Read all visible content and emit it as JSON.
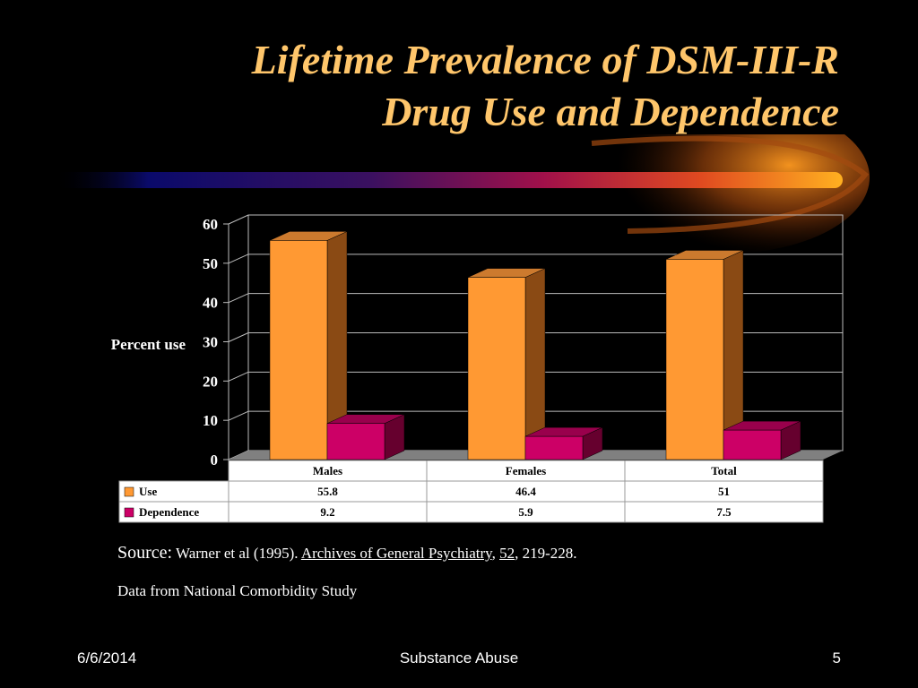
{
  "slide": {
    "title_line1": "Lifetime Prevalence of DSM-III-R",
    "title_line2": "Drug Use and Dependence"
  },
  "colors": {
    "title": "#FFC66B",
    "use_front": "#FF9933",
    "use_side": "#8A4A14",
    "use_top": "#CC7A2E",
    "dep_front": "#CC0066",
    "dep_side": "#66002E",
    "dep_top": "#99004C",
    "background": "#000000"
  },
  "chart_data": {
    "type": "bar",
    "categories": [
      "Males",
      "Females",
      "Total"
    ],
    "series": [
      {
        "name": "Use",
        "values": [
          55.8,
          46.4,
          51
        ]
      },
      {
        "name": "Dependence",
        "values": [
          9.2,
          5.9,
          7.5
        ]
      }
    ],
    "table_values": [
      [
        "55.8",
        "46.4",
        "51"
      ],
      [
        "9.2",
        "5.9",
        "7.5"
      ]
    ],
    "ylabel": "Percent use",
    "ylim": [
      0,
      60
    ],
    "yticks": [
      0,
      10,
      20,
      30,
      40,
      50,
      60
    ],
    "grid": true,
    "legend": "data table below chart"
  },
  "source": {
    "label": "Source:",
    "text1": " Warner et al (1995). ",
    "journal": "Archives of General Psychiatry",
    "sep": ", ",
    "volume": "52",
    "pages": ", 219-228."
  },
  "note": "Data from National Comorbidity Study",
  "footer": {
    "date": "6/6/2014",
    "center": "Substance Abuse",
    "page": "5"
  }
}
